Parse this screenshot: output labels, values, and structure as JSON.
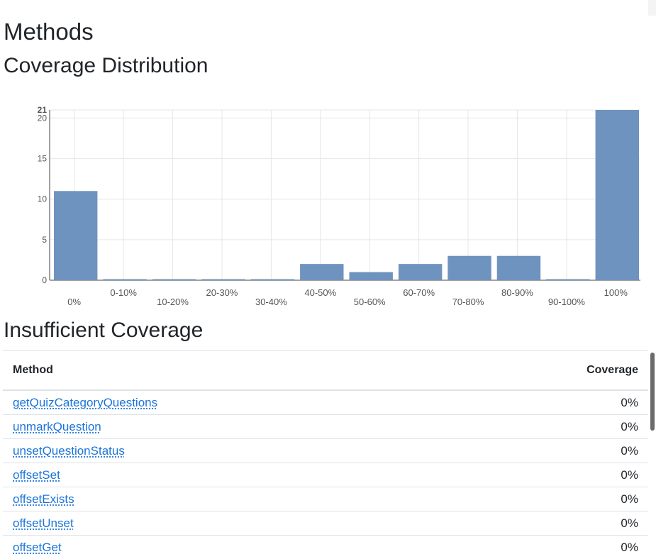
{
  "page": {
    "title": "Methods",
    "distribution_heading": "Coverage Distribution",
    "insufficient_heading": "Insufficient Coverage"
  },
  "chart_data": {
    "type": "bar",
    "title": "",
    "xlabel": "",
    "ylabel": "",
    "categories": [
      "0%",
      "0-10%",
      "10-20%",
      "20-30%",
      "30-40%",
      "40-50%",
      "50-60%",
      "60-70%",
      "70-80%",
      "80-90%",
      "90-100%",
      "100%"
    ],
    "values": [
      11,
      0,
      0,
      0,
      0,
      2,
      1,
      2,
      3,
      3,
      0,
      21
    ],
    "ylim": [
      0,
      21
    ],
    "yticks": [
      0,
      5,
      10,
      15,
      20,
      21
    ],
    "bar_color": "#6f93bf",
    "grid": true
  },
  "table": {
    "headers": {
      "method": "Method",
      "coverage": "Coverage"
    },
    "rows": [
      {
        "method": "getQuizCategoryQuestions",
        "coverage": "0%"
      },
      {
        "method": "unmarkQuestion",
        "coverage": "0%"
      },
      {
        "method": "unsetQuestionStatus",
        "coverage": "0%"
      },
      {
        "method": "offsetSet",
        "coverage": "0%"
      },
      {
        "method": "offsetExists",
        "coverage": "0%"
      },
      {
        "method": "offsetUnset",
        "coverage": "0%"
      },
      {
        "method": "offsetGet",
        "coverage": "0%"
      }
    ]
  },
  "colors": {
    "link": "#1a73d9",
    "text": "#212529",
    "border": "#dee2e6"
  }
}
